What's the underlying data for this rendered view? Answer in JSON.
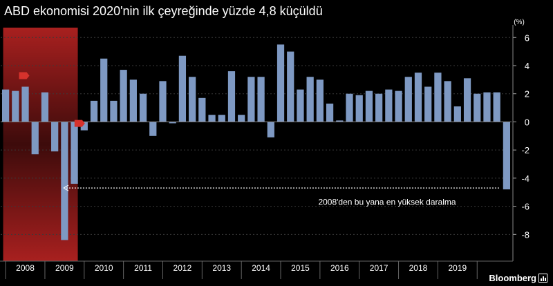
{
  "title": "ABD ekonomisi 2020'nin ilk çeyreğinde yüzde 4,8 küçüldü",
  "logo": "Bloomberg",
  "chart_data": {
    "type": "bar",
    "unit_label": "(%)",
    "y_ticks": [
      6,
      4,
      2,
      0,
      -2,
      -4,
      -6,
      -8
    ],
    "ylim": [
      -9.9,
      6.7
    ],
    "bar_color": "#7e99c3",
    "recession_color": "#a8201f",
    "recession_quarters": [
      0,
      7
    ],
    "years": [
      "2008",
      "2009",
      "2010",
      "2011",
      "2012",
      "2013",
      "2014",
      "2015",
      "2016",
      "2017",
      "2018",
      "2019"
    ],
    "quarters_per_year": 4,
    "values": [
      2.3,
      2.2,
      2.5,
      -2.3,
      2.1,
      -2.1,
      -8.4,
      -4.4,
      -0.6,
      1.5,
      4.5,
      1.5,
      3.7,
      3.0,
      2.0,
      -1.0,
      2.9,
      -0.1,
      4.7,
      3.2,
      1.7,
      0.5,
      0.5,
      3.6,
      0.5,
      3.2,
      3.2,
      -1.1,
      5.5,
      5.0,
      2.3,
      3.2,
      3.0,
      1.3,
      0.1,
      2.0,
      1.9,
      2.2,
      2.0,
      2.3,
      2.2,
      3.2,
      3.5,
      2.5,
      3.5,
      2.9,
      1.1,
      3.1,
      2.0,
      2.1,
      2.1,
      -4.8
    ],
    "annotation": "2008'den bu yana en yüksek daralma",
    "arrow_y": -4.7
  }
}
